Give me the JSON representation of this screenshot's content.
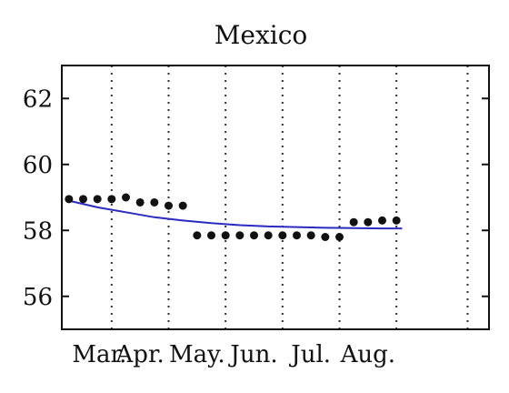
{
  "chart_data": {
    "type": "scatter",
    "title": "Mexico",
    "xlabel": "",
    "ylabel": "",
    "x_tick_labels": [
      "Mar.",
      "Apr.",
      "May.",
      "Jun.",
      "Jul.",
      "Aug."
    ],
    "y_ticks": [
      56,
      58,
      60,
      62
    ],
    "ylim": [
      55,
      63
    ],
    "xlim": [
      0,
      30
    ],
    "month_boundaries": [
      3.5,
      7.5,
      11.5,
      15.5,
      19.5,
      23.5,
      28.5
    ],
    "grid": "vertical-dotted",
    "series": [
      {
        "kind": "points",
        "color": "#111111",
        "points": [
          {
            "x": 0.5,
            "y": 58.95
          },
          {
            "x": 1.5,
            "y": 58.95
          },
          {
            "x": 2.5,
            "y": 58.95
          },
          {
            "x": 3.5,
            "y": 58.95
          },
          {
            "x": 4.5,
            "y": 59.0
          },
          {
            "x": 5.5,
            "y": 58.85
          },
          {
            "x": 6.5,
            "y": 58.85
          },
          {
            "x": 7.5,
            "y": 58.75
          },
          {
            "x": 8.5,
            "y": 58.75
          },
          {
            "x": 9.5,
            "y": 57.85
          },
          {
            "x": 10.5,
            "y": 57.85
          },
          {
            "x": 11.5,
            "y": 57.85
          },
          {
            "x": 12.5,
            "y": 57.85
          },
          {
            "x": 13.5,
            "y": 57.85
          },
          {
            "x": 14.5,
            "y": 57.85
          },
          {
            "x": 15.5,
            "y": 57.85
          },
          {
            "x": 16.5,
            "y": 57.85
          },
          {
            "x": 17.5,
            "y": 57.85
          },
          {
            "x": 18.5,
            "y": 57.8
          },
          {
            "x": 19.5,
            "y": 57.8
          },
          {
            "x": 20.5,
            "y": 58.25
          },
          {
            "x": 21.5,
            "y": 58.25
          },
          {
            "x": 22.5,
            "y": 58.3
          },
          {
            "x": 23.5,
            "y": 58.3
          }
        ]
      },
      {
        "kind": "line",
        "color": "#2b2bbf",
        "points": [
          {
            "x": 0.5,
            "y": 58.9
          },
          {
            "x": 2.5,
            "y": 58.7
          },
          {
            "x": 4.5,
            "y": 58.55
          },
          {
            "x": 6.5,
            "y": 58.4
          },
          {
            "x": 8.5,
            "y": 58.3
          },
          {
            "x": 10.5,
            "y": 58.22
          },
          {
            "x": 12.5,
            "y": 58.16
          },
          {
            "x": 14.5,
            "y": 58.12
          },
          {
            "x": 16.5,
            "y": 58.1
          },
          {
            "x": 18.5,
            "y": 58.08
          },
          {
            "x": 20.5,
            "y": 58.07
          },
          {
            "x": 22.5,
            "y": 58.06
          },
          {
            "x": 23.9,
            "y": 58.06
          }
        ]
      }
    ]
  }
}
